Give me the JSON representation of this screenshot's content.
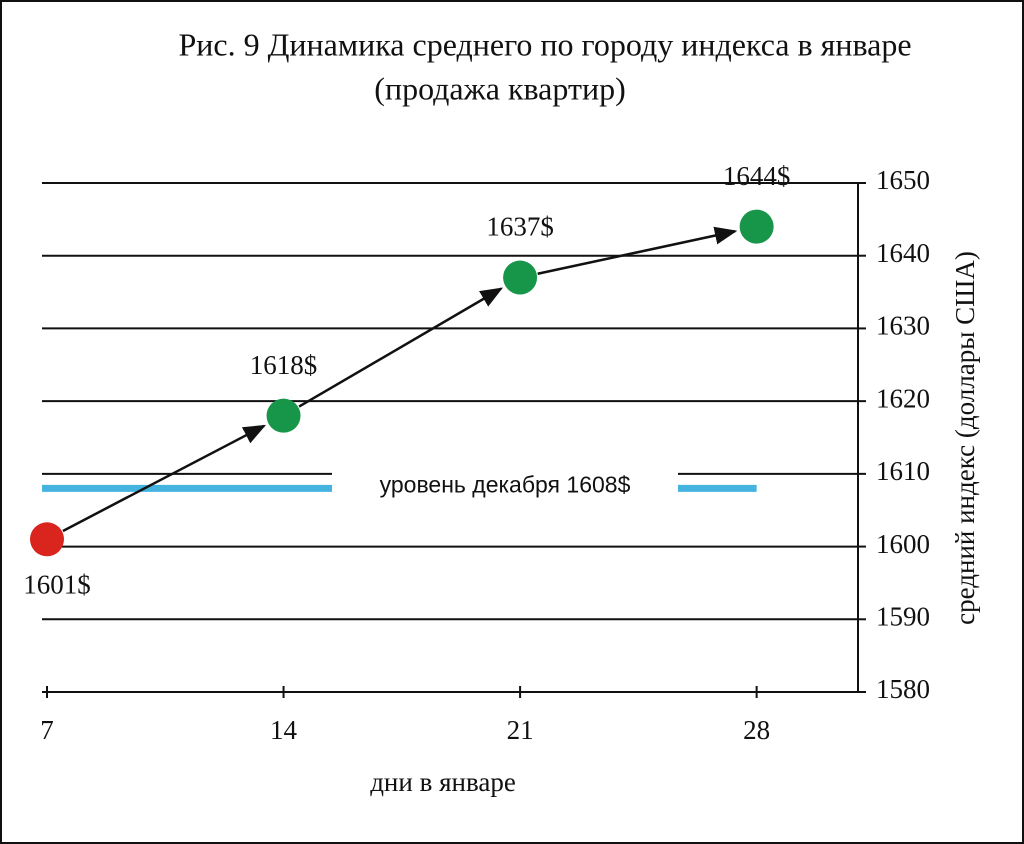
{
  "chart_data": {
    "type": "line",
    "title": "Рис. 9 Динамика среднего по городу индекса в январе",
    "subtitle": "(продажа квартир)",
    "x_label": "дни в январе",
    "y_label": "средний индекс (доллары США)",
    "x": [
      7,
      14,
      21,
      28
    ],
    "xlim": [
      7,
      31
    ],
    "xticks": [
      7,
      14,
      21,
      28
    ],
    "ylim": [
      1580,
      1650
    ],
    "yticks": [
      1580,
      1590,
      1600,
      1610,
      1620,
      1630,
      1640,
      1650
    ],
    "y_axis_side": "right",
    "grid": true,
    "series": [
      {
        "values": [
          1601,
          1618,
          1637,
          1644
        ],
        "value_labels": [
          "1601$",
          "1618$",
          "1637$",
          "1644$"
        ],
        "colors": [
          "#d9251d",
          "#17964a",
          "#17964a",
          "#17964a"
        ]
      }
    ],
    "reference_line": {
      "value": 1608,
      "label": "уровень декабря 1608$",
      "color": "#45b3e0"
    }
  }
}
